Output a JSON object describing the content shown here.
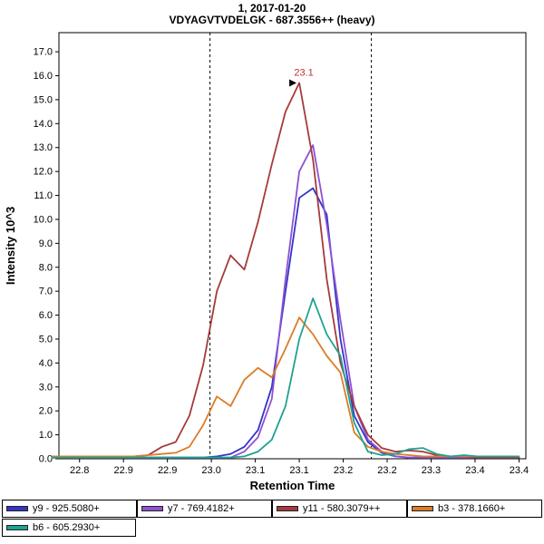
{
  "chart_data": {
    "type": "line",
    "title": "1, 2017-01-20",
    "subtitle": "VDYAGVTVDELGK - 687.3556++ (heavy)",
    "xlabel": "Retention Time",
    "ylabel": "Intensity 10^3",
    "xlim": [
      22.77,
      23.45
    ],
    "ylim": [
      0,
      17.8
    ],
    "grid": false,
    "legend_position": "bottom",
    "boundaries": [
      22.99,
      23.225
    ],
    "annotation": {
      "text": "23.1",
      "x": 23.12,
      "y": 15.7,
      "text_color": "#c03030",
      "arrow_color": "#000000"
    },
    "x_ticks": {
      "positions": [
        22.8,
        22.864,
        22.928,
        22.992,
        23.056,
        23.12,
        23.184,
        23.248,
        23.312,
        23.376,
        23.44
      ],
      "labels": [
        "22.8",
        "22.9",
        "22.9",
        "23.0",
        "23.1",
        "23.1",
        "23.2",
        "23.2",
        "23.3",
        "23.4",
        "23.4"
      ]
    },
    "y_ticks": {
      "values": [
        0,
        1,
        2,
        3,
        4,
        5,
        6,
        7,
        8,
        9,
        10,
        11,
        12,
        13,
        14,
        15,
        16,
        17
      ],
      "labels": [
        "0.0",
        "1.0",
        "2.0",
        "3.0",
        "4.0",
        "5.0",
        "6.0",
        "7.0",
        "8.0",
        "9.0",
        "10.0",
        "11.0",
        "12.0",
        "13.0",
        "14.0",
        "15.0",
        "16.0",
        "17.0"
      ]
    },
    "x": [
      22.76,
      22.78,
      22.8,
      22.82,
      22.84,
      22.86,
      22.88,
      22.9,
      22.92,
      22.94,
      22.96,
      22.98,
      23.0,
      23.02,
      23.04,
      23.06,
      23.08,
      23.1,
      23.12,
      23.14,
      23.16,
      23.18,
      23.2,
      23.22,
      23.24,
      23.26,
      23.28,
      23.3,
      23.32,
      23.34,
      23.36,
      23.38,
      23.4,
      23.42,
      23.44
    ],
    "series": [
      {
        "name": "y9",
        "label": "y9 - 925.5080+",
        "color": "#3434c8",
        "values": [
          0.05,
          0.05,
          0.05,
          0.05,
          0.05,
          0.05,
          0.05,
          0.05,
          0.05,
          0.05,
          0.05,
          0.05,
          0.1,
          0.2,
          0.5,
          1.2,
          3,
          7,
          10.9,
          11.3,
          10.2,
          5,
          1.8,
          0.7,
          0.25,
          0.1,
          0.05,
          0.05,
          0.05,
          0.05,
          0.05,
          0.05,
          0.05,
          0.05,
          0.05
        ]
      },
      {
        "name": "y7",
        "label": "y7 - 769.4182+",
        "color": "#8e51d2",
        "values": [
          0.05,
          0.05,
          0.05,
          0.05,
          0.05,
          0.05,
          0.05,
          0.05,
          0.05,
          0.05,
          0.05,
          0.05,
          0.05,
          0.05,
          0.3,
          0.9,
          2.5,
          7.5,
          12,
          13.1,
          9.8,
          5.8,
          2.2,
          0.8,
          0.3,
          0.1,
          0.05,
          0.05,
          0.05,
          0.05,
          0.05,
          0.05,
          0.05,
          0.05,
          0.05
        ]
      },
      {
        "name": "y11",
        "label": "y11 - 580.3079++",
        "color": "#a63a3a",
        "values": [
          0.05,
          0.05,
          0.05,
          0.05,
          0.05,
          0.05,
          0.1,
          0.15,
          0.5,
          0.7,
          1.8,
          3.9,
          7,
          8.5,
          7.9,
          9.9,
          12.3,
          14.5,
          15.7,
          12.5,
          7.5,
          4,
          2.2,
          1,
          0.45,
          0.3,
          0.35,
          0.3,
          0.15,
          0.1,
          0.1,
          0.05,
          0.05,
          0.05,
          0.05
        ]
      },
      {
        "name": "b3",
        "label": "b3 - 378.1660+",
        "color": "#dc7c27",
        "values": [
          0.1,
          0.1,
          0.1,
          0.1,
          0.1,
          0.1,
          0.1,
          0.15,
          0.2,
          0.25,
          0.5,
          1.4,
          2.6,
          2.2,
          3.3,
          3.8,
          3.4,
          4.6,
          5.9,
          5.2,
          4.3,
          3.6,
          1.1,
          0.5,
          0.3,
          0.2,
          0.15,
          0.1,
          0.1,
          0.1,
          0.1,
          0.1,
          0.1,
          0.1,
          0.1
        ]
      },
      {
        "name": "b6",
        "label": "b6 - 605.2930+",
        "color": "#1fa290",
        "values": [
          0.05,
          0.05,
          0.05,
          0.05,
          0.05,
          0.05,
          0.05,
          0.05,
          0.05,
          0.05,
          0.05,
          0.05,
          0.05,
          0.05,
          0.1,
          0.3,
          0.8,
          2.2,
          5,
          6.7,
          5.2,
          4.3,
          1.5,
          0.3,
          0.15,
          0.2,
          0.4,
          0.45,
          0.2,
          0.1,
          0.15,
          0.1,
          0.1,
          0.1,
          0.1
        ]
      }
    ]
  }
}
